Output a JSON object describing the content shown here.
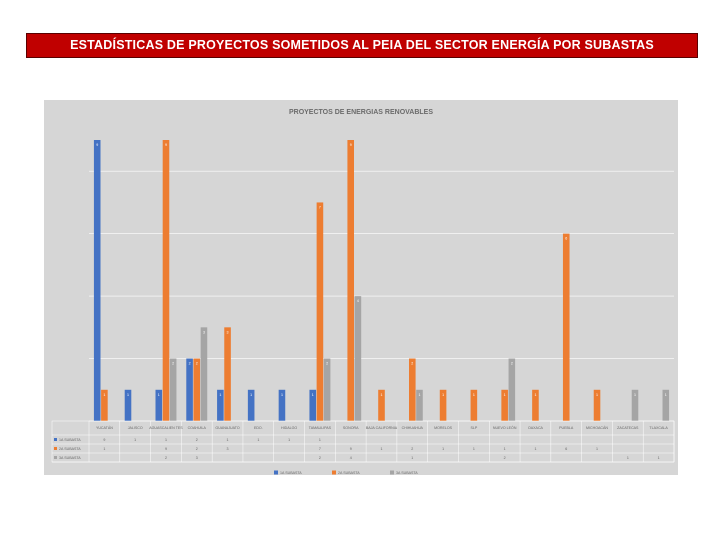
{
  "banner": {
    "title": "ESTADÍSTICAS DE PROYECTOS SOMETIDOS AL PEIA DEL SECTOR ENERGÍA POR SUBASTAS"
  },
  "colors": {
    "banner_bg": "#c00000",
    "series": [
      "#4472c4",
      "#ed7d31",
      "#a5a5a5"
    ],
    "chart_bg": "#d6d6d6"
  },
  "chart_data": {
    "type": "bar",
    "title": "PROYECTOS DE ENERGIAS RENOVABLES",
    "xlabel": "",
    "ylabel": "",
    "ylim": [
      0,
      9
    ],
    "grid": true,
    "legend_position": "bottom",
    "categories": [
      "YUCATÁN",
      "JALISCO",
      "AGUASCALIENTES",
      "COAHUILA",
      "GUANAJUATO",
      "EDO.",
      "HIDALGO",
      "TAMAULIPAS",
      "SONORA",
      "BAJA CALIFORNIA",
      "CHIHUAHUA",
      "MORELOS",
      "SLP",
      "NUEVO LEÓN",
      "OAXACA",
      "PUEBLA",
      "MICHOACÁN",
      "ZACATECAS",
      "TLAXCALA"
    ],
    "category_display": [
      "YUCATÁN",
      "JALISCO",
      "AGUASCALIEN TES",
      "COAHUILA",
      "GUANAJUATO",
      "EDO.",
      "HIDALGO",
      "TAMAULIPAS",
      "SONORA",
      "BAJA CALIFORNIA",
      "CHIHUAHUA",
      "MORELOS",
      "SLP",
      "NUEVO LEÓN",
      "OAXACA",
      "PUEBLA",
      "MICHOACÁN",
      "ZACATECAS",
      "TLAXCALA"
    ],
    "series": [
      {
        "name": "1A SUBASTA",
        "values": [
          9,
          1,
          1,
          2,
          1,
          1,
          1,
          1,
          null,
          null,
          null,
          null,
          null,
          null,
          null,
          null,
          null,
          null,
          null
        ]
      },
      {
        "name": "2A SUBASTA",
        "values": [
          1,
          null,
          9,
          2,
          3,
          null,
          null,
          7,
          9,
          1,
          2,
          1,
          1,
          1,
          1,
          6,
          1,
          null,
          null
        ]
      },
      {
        "name": "3A SUBASTA",
        "values": [
          null,
          null,
          2,
          3,
          null,
          null,
          null,
          2,
          4,
          null,
          1,
          null,
          null,
          2,
          null,
          null,
          null,
          1,
          1
        ]
      }
    ]
  }
}
